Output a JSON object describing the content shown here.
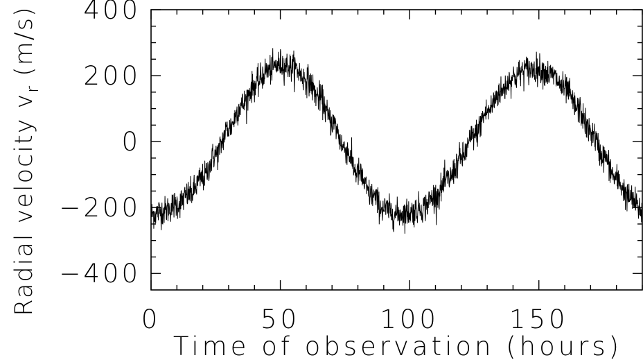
{
  "chart_data": {
    "type": "line",
    "title": "",
    "xlabel": "Time of observation (hours)",
    "ylabel": "Radial velocity v",
    "ylabel_subscript": "r",
    "ylabel_unit": "(m/s)",
    "xlim": [
      0,
      190
    ],
    "ylim": [
      -450,
      400
    ],
    "x_ticks": [
      0,
      50,
      100,
      150
    ],
    "x_tick_labels": [
      "0",
      "50",
      "100",
      "150"
    ],
    "y_ticks": [
      -400,
      -200,
      0,
      200,
      400
    ],
    "y_tick_labels": [
      "−400",
      "−200",
      "0",
      "200",
      "400"
    ],
    "grid": false,
    "line_color": "#000000",
    "series": [
      {
        "x": [
          0,
          5,
          10,
          15,
          20,
          25,
          30,
          35,
          40,
          45,
          50,
          55,
          60,
          65,
          70,
          75,
          80,
          85,
          90,
          95,
          100,
          105,
          110,
          115,
          120,
          125,
          130,
          135,
          140,
          145,
          150,
          155,
          160,
          165,
          170,
          175,
          180,
          185,
          190
        ],
        "y": [
          -220,
          -210,
          -190,
          -160,
          -110,
          -40,
          40,
          110,
          170,
          215,
          235,
          225,
          190,
          135,
          60,
          -20,
          -95,
          -160,
          -205,
          -220,
          -215,
          -200,
          -165,
          -115,
          -50,
          20,
          90,
          150,
          195,
          218,
          220,
          200,
          160,
          100,
          30,
          -45,
          -115,
          -170,
          -210
        ]
      }
    ],
    "noise_amplitude": 40
  }
}
